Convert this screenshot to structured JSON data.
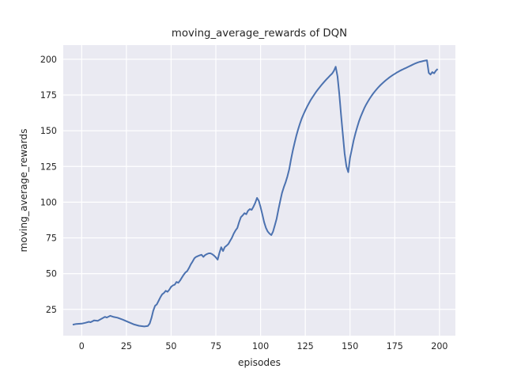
{
  "chart_data": {
    "type": "line",
    "title": "moving_average_rewards of DQN",
    "xlabel": "episodes",
    "ylabel": "moving_average_rewards",
    "legend": null,
    "grid": true,
    "style": "seaborn-darkgrid",
    "xlim": [
      -10.3,
      208.9
    ],
    "ylim": [
      6.6,
      209.9
    ],
    "x_ticks": [
      0,
      25,
      50,
      75,
      100,
      125,
      150,
      175,
      200
    ],
    "y_ticks": [
      25,
      50,
      75,
      100,
      125,
      150,
      175,
      200
    ],
    "colors": {
      "line": "#4c72b0",
      "plot_background": "#eaeaf2",
      "grid": "#ffffff",
      "text": "#262626",
      "figure_background": "#ffffff"
    },
    "series": [
      {
        "name": "moving_average_rewards",
        "x": [
          -5,
          -3,
          0,
          2,
          4,
          5,
          7,
          9,
          11,
          13,
          14,
          16,
          18,
          20,
          23,
          26,
          29,
          32,
          35,
          37,
          38,
          39,
          40,
          41,
          42,
          43,
          44,
          45,
          46,
          47,
          48,
          49,
          50,
          51,
          52,
          53,
          54,
          55,
          56,
          57,
          58,
          59,
          60,
          61,
          62,
          63,
          64,
          65,
          66,
          67,
          68,
          69,
          70,
          71,
          72,
          73,
          74,
          75,
          76,
          77,
          78,
          79,
          80,
          81,
          82,
          83,
          84,
          85,
          86,
          87,
          88,
          89,
          90,
          91,
          92,
          93,
          94,
          95,
          96,
          97,
          98,
          99,
          100,
          101,
          102,
          103,
          104,
          105,
          106,
          107,
          108,
          109,
          110,
          111,
          112,
          113,
          114,
          115,
          116,
          117,
          118,
          119,
          120,
          121,
          122,
          123,
          124,
          125,
          126,
          127,
          128,
          129,
          130,
          131,
          132,
          133,
          134,
          135,
          136,
          137,
          138,
          139,
          140,
          141,
          142,
          143,
          144,
          145,
          146,
          147,
          148,
          149,
          150,
          151,
          152,
          153,
          154,
          155,
          156,
          157,
          158,
          159,
          160,
          161,
          162,
          163,
          164,
          165,
          166,
          167,
          168,
          169,
          170,
          171,
          172,
          173,
          174,
          175,
          176,
          177,
          178,
          179,
          180,
          181,
          182,
          183,
          184,
          185,
          186,
          187,
          188,
          189,
          190,
          191,
          192,
          193,
          194,
          195,
          196,
          197,
          198,
          199
        ],
        "y": [
          14.3,
          14.8,
          15,
          15.6,
          16.3,
          16,
          17.3,
          17,
          18.4,
          19.8,
          19.3,
          20.5,
          19.7,
          19.2,
          17.8,
          16.2,
          14.6,
          13.5,
          13,
          13.4,
          15,
          19,
          24,
          27.5,
          28.5,
          31,
          33.5,
          35.5,
          36.5,
          38,
          37.3,
          38.8,
          40.8,
          41.8,
          42.3,
          44.2,
          43.6,
          45.2,
          47.2,
          49.2,
          50.8,
          51.8,
          54,
          56.5,
          58.5,
          60.8,
          61.8,
          62.3,
          62.8,
          63.2,
          61.7,
          63,
          63.7,
          64.2,
          64.2,
          63.6,
          62.6,
          61.4,
          59.8,
          64.5,
          68.5,
          65.8,
          68.6,
          69.6,
          70.8,
          73,
          75.2,
          78,
          80.2,
          82,
          86,
          89.5,
          90.8,
          92.3,
          91.6,
          94,
          95.2,
          94.6,
          96.8,
          99.5,
          103,
          101,
          96.5,
          91.5,
          86,
          82,
          79.5,
          78,
          77,
          79.5,
          84,
          88.5,
          95,
          101,
          106.5,
          110.5,
          114,
          118,
          123,
          130,
          136,
          141.5,
          146.5,
          151,
          155,
          158.5,
          161.5,
          164.3,
          166.8,
          169.2,
          171.4,
          173.4,
          175.3,
          177.1,
          178.8,
          180.4,
          181.9,
          183.4,
          184.8,
          186.2,
          187.5,
          188.8,
          190,
          192,
          194.8,
          188,
          176,
          161,
          147,
          134,
          125,
          121,
          131,
          137,
          143,
          148,
          152.5,
          156.5,
          160,
          163,
          165.8,
          168.3,
          170.5,
          172.5,
          174.4,
          176.1,
          177.7,
          179.2,
          180.6,
          181.9,
          183.1,
          184.2,
          185.3,
          186.3,
          187.3,
          188.2,
          189,
          189.8,
          190.6,
          191.3,
          192,
          192.6,
          193.2,
          193.8,
          194.4,
          195,
          195.6,
          196.2,
          196.8,
          197.3,
          197.8,
          198.2,
          198.5,
          198.8,
          199.1,
          199.3,
          190.5,
          189.3,
          191,
          190.2,
          192,
          193.2
        ]
      }
    ]
  }
}
